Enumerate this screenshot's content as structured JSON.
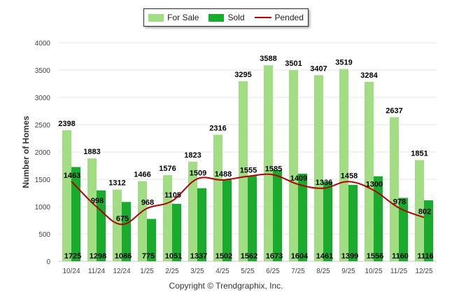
{
  "chart_data": {
    "type": "bar",
    "categories": [
      "10/24",
      "11/24",
      "12/24",
      "1/25",
      "2/25",
      "3/25",
      "4/25",
      "5/25",
      "6/25",
      "7/25",
      "8/25",
      "9/25",
      "10/25",
      "11/25",
      "12/25"
    ],
    "series": [
      {
        "name": "For Sale",
        "kind": "bar",
        "color": "#a1de83",
        "values": [
          2398,
          1883,
          1312,
          1466,
          1576,
          1823,
          2316,
          3295,
          3588,
          3501,
          3407,
          3519,
          3284,
          2637,
          1851
        ]
      },
      {
        "name": "Sold",
        "kind": "bar",
        "color": "#19ab2e",
        "values": [
          1725,
          1298,
          1086,
          775,
          1051,
          1337,
          1502,
          1562,
          1673,
          1604,
          1461,
          1399,
          1556,
          1160,
          1116
        ]
      },
      {
        "name": "Pended",
        "kind": "line",
        "color": "#b30000",
        "values": [
          1463,
          998,
          675,
          968,
          1105,
          1509,
          1488,
          1555,
          1585,
          1409,
          1336,
          1458,
          1300,
          978,
          802
        ]
      }
    ],
    "title": "",
    "xlabel": "",
    "ylabel": "Number of Homes",
    "ylim": [
      0,
      4000
    ],
    "yticks": [
      0,
      500,
      1000,
      1500,
      2000,
      2500,
      3000,
      3500,
      4000
    ],
    "grid": true,
    "legend": "top-center"
  },
  "footer": {
    "copyright": "Copyright © Trendgraphix, Inc."
  }
}
